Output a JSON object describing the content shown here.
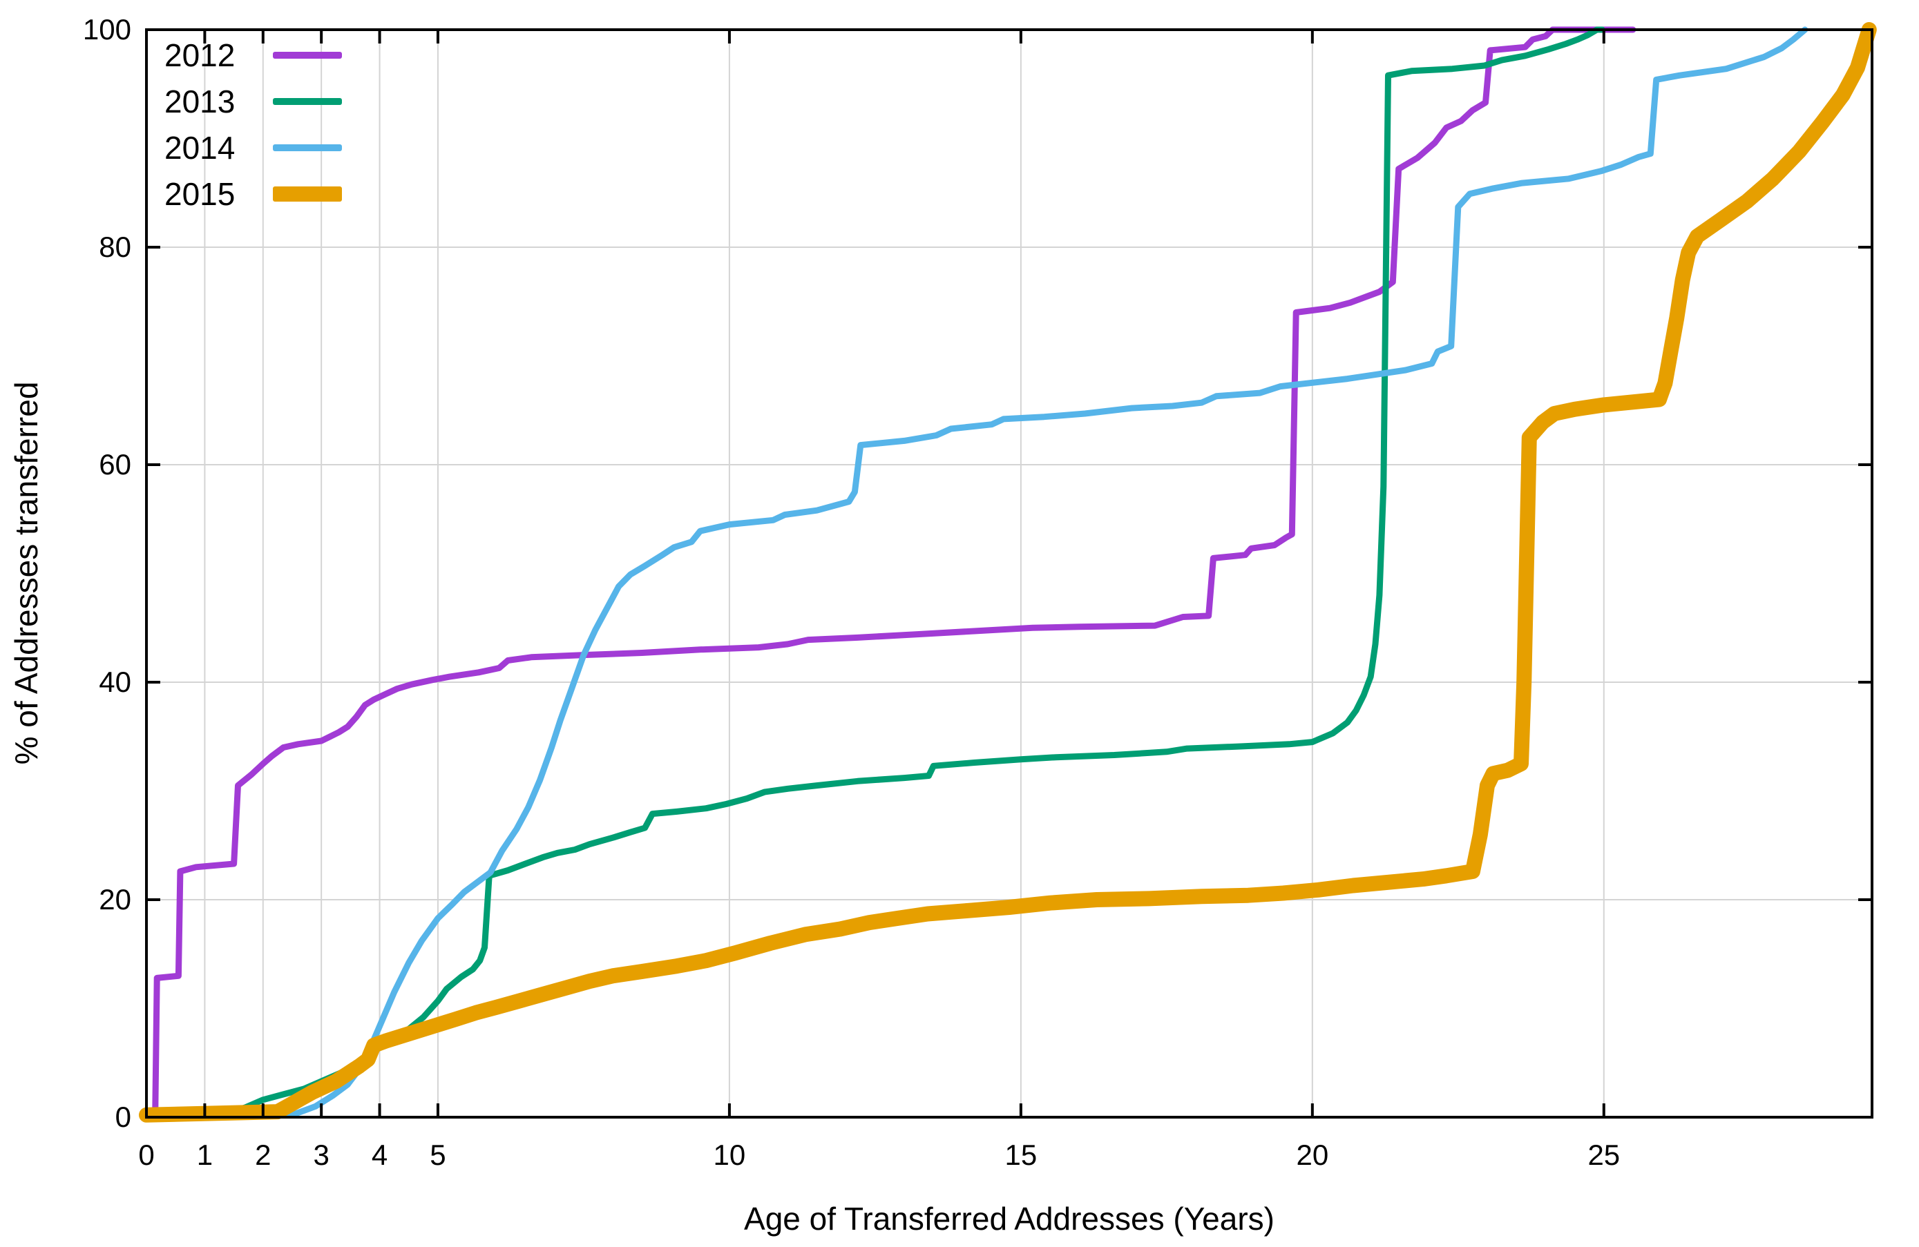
{
  "axes": {
    "x": {
      "title": "Age of Transferred Addresses (Years)",
      "range": [
        0,
        29.6
      ],
      "ticks": [
        0,
        1,
        2,
        3,
        4,
        5,
        10,
        15,
        20,
        25
      ]
    },
    "y": {
      "title": "% of Addresses transferred",
      "range": [
        0,
        100
      ],
      "ticks": [
        0,
        20,
        40,
        60,
        80,
        100
      ]
    }
  },
  "legend": [
    {
      "label": "2012",
      "color": "#a13bd5",
      "thick": false
    },
    {
      "label": "2013",
      "color": "#009e73",
      "thick": false
    },
    {
      "label": "2014",
      "color": "#56b4e9",
      "thick": false
    },
    {
      "label": "2015",
      "color": "#e69f00",
      "thick": true
    }
  ],
  "colors": {
    "grid": "#d4d4d4",
    "axis": "#000000",
    "background": "#ffffff"
  },
  "chart_data": {
    "type": "line",
    "title": "",
    "xlabel": "Age of Transferred Addresses (Years)",
    "ylabel": "% of Addresses transferred",
    "xlim": [
      0,
      29.6
    ],
    "ylim": [
      0,
      100
    ],
    "grid": true,
    "legend_position": "top-left-inside",
    "series": [
      {
        "name": "2012",
        "color": "#a13bd5",
        "line_width": 9,
        "points": [
          [
            0,
            0
          ],
          [
            0.15,
            0.2
          ],
          [
            0.18,
            12.8
          ],
          [
            0.55,
            13
          ],
          [
            0.58,
            22.6
          ],
          [
            0.85,
            23
          ],
          [
            1.5,
            23.3
          ],
          [
            1.57,
            30.5
          ],
          [
            1.8,
            31.5
          ],
          [
            2.0,
            32.5
          ],
          [
            2.15,
            33.2
          ],
          [
            2.35,
            34
          ],
          [
            2.6,
            34.3
          ],
          [
            3.0,
            34.6
          ],
          [
            3.15,
            35
          ],
          [
            3.3,
            35.4
          ],
          [
            3.45,
            35.9
          ],
          [
            3.6,
            36.8
          ],
          [
            3.75,
            37.9
          ],
          [
            3.9,
            38.4
          ],
          [
            4.1,
            38.9
          ],
          [
            4.3,
            39.4
          ],
          [
            4.55,
            39.8
          ],
          [
            4.9,
            40.2
          ],
          [
            5.2,
            40.5
          ],
          [
            5.7,
            40.9
          ],
          [
            6.05,
            41.3
          ],
          [
            6.2,
            42
          ],
          [
            6.6,
            42.3
          ],
          [
            7.5,
            42.5
          ],
          [
            8.5,
            42.7
          ],
          [
            9.5,
            43
          ],
          [
            10.5,
            43.2
          ],
          [
            11.0,
            43.5
          ],
          [
            11.35,
            43.9
          ],
          [
            12.2,
            44.1
          ],
          [
            13.2,
            44.4
          ],
          [
            14.2,
            44.7
          ],
          [
            15.2,
            45
          ],
          [
            16.0,
            45.1
          ],
          [
            17.3,
            45.2
          ],
          [
            17.78,
            46
          ],
          [
            18.22,
            46.1
          ],
          [
            18.3,
            51.4
          ],
          [
            18.85,
            51.7
          ],
          [
            18.95,
            52.3
          ],
          [
            19.35,
            52.6
          ],
          [
            19.55,
            53.3
          ],
          [
            19.65,
            53.6
          ],
          [
            19.72,
            74
          ],
          [
            20.3,
            74.4
          ],
          [
            20.65,
            74.9
          ],
          [
            20.95,
            75.5
          ],
          [
            21.15,
            75.9
          ],
          [
            21.38,
            76.8
          ],
          [
            21.48,
            87.2
          ],
          [
            21.8,
            88.2
          ],
          [
            22.1,
            89.6
          ],
          [
            22.3,
            91
          ],
          [
            22.55,
            91.6
          ],
          [
            22.75,
            92.6
          ],
          [
            22.97,
            93.3
          ],
          [
            23.05,
            98.1
          ],
          [
            23.65,
            98.4
          ],
          [
            23.78,
            99.1
          ],
          [
            24.0,
            99.4
          ],
          [
            24.12,
            100
          ],
          [
            25.5,
            100
          ]
        ]
      },
      {
        "name": "2013",
        "color": "#009e73",
        "line_width": 9,
        "points": [
          [
            0,
            0
          ],
          [
            1.3,
            0.2
          ],
          [
            1.7,
            0.9
          ],
          [
            2.0,
            1.6
          ],
          [
            2.35,
            2.1
          ],
          [
            2.7,
            2.6
          ],
          [
            3.0,
            3.3
          ],
          [
            3.3,
            4.0
          ],
          [
            3.55,
            4.6
          ],
          [
            3.8,
            5.6
          ],
          [
            4.0,
            6.4
          ],
          [
            4.2,
            7.4
          ],
          [
            4.5,
            8.1
          ],
          [
            4.75,
            9.2
          ],
          [
            5.0,
            10.7
          ],
          [
            5.15,
            11.8
          ],
          [
            5.4,
            12.9
          ],
          [
            5.6,
            13.6
          ],
          [
            5.72,
            14.4
          ],
          [
            5.8,
            15.6
          ],
          [
            5.88,
            22.2
          ],
          [
            6.2,
            22.7
          ],
          [
            6.5,
            23.3
          ],
          [
            6.8,
            23.9
          ],
          [
            7.05,
            24.3
          ],
          [
            7.35,
            24.6
          ],
          [
            7.6,
            25.1
          ],
          [
            8.0,
            25.7
          ],
          [
            8.3,
            26.2
          ],
          [
            8.55,
            26.6
          ],
          [
            8.68,
            27.9
          ],
          [
            9.1,
            28.1
          ],
          [
            9.6,
            28.4
          ],
          [
            9.95,
            28.8
          ],
          [
            10.3,
            29.3
          ],
          [
            10.6,
            29.9
          ],
          [
            11.0,
            30.2
          ],
          [
            11.5,
            30.5
          ],
          [
            12.2,
            30.9
          ],
          [
            13.0,
            31.2
          ],
          [
            13.42,
            31.4
          ],
          [
            13.5,
            32.3
          ],
          [
            14.2,
            32.6
          ],
          [
            15.0,
            32.9
          ],
          [
            15.6,
            33.1
          ],
          [
            16.6,
            33.3
          ],
          [
            17.5,
            33.6
          ],
          [
            17.85,
            33.9
          ],
          [
            18.8,
            34.1
          ],
          [
            19.6,
            34.3
          ],
          [
            20.0,
            34.5
          ],
          [
            20.35,
            35.3
          ],
          [
            20.6,
            36.3
          ],
          [
            20.75,
            37.4
          ],
          [
            20.88,
            38.8
          ],
          [
            21.0,
            40.5
          ],
          [
            21.08,
            43.5
          ],
          [
            21.15,
            48
          ],
          [
            21.22,
            58
          ],
          [
            21.3,
            95.8
          ],
          [
            21.7,
            96.2
          ],
          [
            22.4,
            96.4
          ],
          [
            22.95,
            96.7
          ],
          [
            23.25,
            97.2
          ],
          [
            23.65,
            97.6
          ],
          [
            24.05,
            98.2
          ],
          [
            24.35,
            98.7
          ],
          [
            24.55,
            99.1
          ],
          [
            24.72,
            99.5
          ],
          [
            24.88,
            100
          ],
          [
            24.97,
            100
          ]
        ]
      },
      {
        "name": "2014",
        "color": "#56b4e9",
        "line_width": 9,
        "points": [
          [
            0,
            0
          ],
          [
            2.5,
            0.2
          ],
          [
            2.9,
            1.0
          ],
          [
            3.2,
            2.0
          ],
          [
            3.45,
            3.0
          ],
          [
            3.65,
            4.4
          ],
          [
            3.85,
            6.5
          ],
          [
            4.05,
            9.0
          ],
          [
            4.25,
            11.5
          ],
          [
            4.5,
            14.2
          ],
          [
            4.72,
            16.2
          ],
          [
            5.0,
            18.3
          ],
          [
            5.25,
            19.6
          ],
          [
            5.45,
            20.7
          ],
          [
            5.7,
            21.7
          ],
          [
            5.9,
            22.5
          ],
          [
            6.1,
            24.5
          ],
          [
            6.35,
            26.5
          ],
          [
            6.55,
            28.5
          ],
          [
            6.75,
            31
          ],
          [
            6.95,
            34
          ],
          [
            7.1,
            36.5
          ],
          [
            7.3,
            39.5
          ],
          [
            7.5,
            42.5
          ],
          [
            7.7,
            44.8
          ],
          [
            7.9,
            46.8
          ],
          [
            8.1,
            48.8
          ],
          [
            8.3,
            49.9
          ],
          [
            8.55,
            50.7
          ],
          [
            8.85,
            51.7
          ],
          [
            9.05,
            52.4
          ],
          [
            9.35,
            52.9
          ],
          [
            9.5,
            53.9
          ],
          [
            10.0,
            54.5
          ],
          [
            10.75,
            54.9
          ],
          [
            10.95,
            55.4
          ],
          [
            11.5,
            55.8
          ],
          [
            12.05,
            56.6
          ],
          [
            12.15,
            57.5
          ],
          [
            12.25,
            61.8
          ],
          [
            13.0,
            62.2
          ],
          [
            13.55,
            62.7
          ],
          [
            13.8,
            63.3
          ],
          [
            14.5,
            63.7
          ],
          [
            14.7,
            64.2
          ],
          [
            15.4,
            64.4
          ],
          [
            16.1,
            64.7
          ],
          [
            16.9,
            65.2
          ],
          [
            17.6,
            65.4
          ],
          [
            18.1,
            65.7
          ],
          [
            18.35,
            66.3
          ],
          [
            19.1,
            66.6
          ],
          [
            19.45,
            67.2
          ],
          [
            20.6,
            67.9
          ],
          [
            21.1,
            68.3
          ],
          [
            21.6,
            68.7
          ],
          [
            22.05,
            69.3
          ],
          [
            22.15,
            70.4
          ],
          [
            22.38,
            70.9
          ],
          [
            22.5,
            83.7
          ],
          [
            22.7,
            84.9
          ],
          [
            23.1,
            85.4
          ],
          [
            23.6,
            85.9
          ],
          [
            24.4,
            86.3
          ],
          [
            24.95,
            87
          ],
          [
            25.3,
            87.6
          ],
          [
            25.6,
            88.3
          ],
          [
            25.8,
            88.6
          ],
          [
            25.9,
            95.4
          ],
          [
            26.3,
            95.8
          ],
          [
            27.1,
            96.4
          ],
          [
            27.75,
            97.5
          ],
          [
            28.05,
            98.3
          ],
          [
            28.25,
            99.1
          ],
          [
            28.45,
            100
          ]
        ]
      },
      {
        "name": "2015",
        "color": "#e69f00",
        "line_width": 22,
        "points": [
          [
            0,
            0.2
          ],
          [
            2.25,
            0.5
          ],
          [
            2.45,
            1.1
          ],
          [
            2.65,
            1.7
          ],
          [
            2.85,
            2.3
          ],
          [
            3.05,
            2.8
          ],
          [
            3.25,
            3.3
          ],
          [
            3.45,
            4.0
          ],
          [
            3.65,
            4.7
          ],
          [
            3.8,
            5.3
          ],
          [
            3.9,
            6.6
          ],
          [
            4.1,
            7.0
          ],
          [
            4.4,
            7.5
          ],
          [
            4.7,
            8.0
          ],
          [
            5.0,
            8.5
          ],
          [
            5.3,
            9.0
          ],
          [
            5.65,
            9.6
          ],
          [
            6.0,
            10.1
          ],
          [
            6.4,
            10.7
          ],
          [
            6.8,
            11.3
          ],
          [
            7.2,
            11.9
          ],
          [
            7.6,
            12.5
          ],
          [
            8.0,
            13.0
          ],
          [
            8.5,
            13.4
          ],
          [
            9.1,
            13.9
          ],
          [
            9.6,
            14.4
          ],
          [
            10.1,
            15.1
          ],
          [
            10.7,
            16.0
          ],
          [
            11.3,
            16.8
          ],
          [
            11.9,
            17.3
          ],
          [
            12.4,
            17.9
          ],
          [
            12.9,
            18.3
          ],
          [
            13.4,
            18.7
          ],
          [
            14.1,
            19.0
          ],
          [
            14.8,
            19.3
          ],
          [
            15.5,
            19.7
          ],
          [
            16.3,
            20.0
          ],
          [
            17.2,
            20.1
          ],
          [
            18.1,
            20.3
          ],
          [
            18.9,
            20.4
          ],
          [
            19.5,
            20.6
          ],
          [
            20.1,
            20.9
          ],
          [
            20.7,
            21.3
          ],
          [
            21.3,
            21.6
          ],
          [
            21.9,
            21.9
          ],
          [
            22.3,
            22.2
          ],
          [
            22.75,
            22.6
          ],
          [
            22.88,
            26
          ],
          [
            23.0,
            30.5
          ],
          [
            23.1,
            31.6
          ],
          [
            23.35,
            31.9
          ],
          [
            23.58,
            32.5
          ],
          [
            23.63,
            40
          ],
          [
            23.72,
            62.5
          ],
          [
            23.95,
            63.9
          ],
          [
            24.15,
            64.7
          ],
          [
            24.5,
            65.1
          ],
          [
            25.0,
            65.5
          ],
          [
            25.95,
            66
          ],
          [
            26.05,
            67.5
          ],
          [
            26.15,
            70.5
          ],
          [
            26.25,
            73.5
          ],
          [
            26.35,
            77
          ],
          [
            26.45,
            79.5
          ],
          [
            26.6,
            81
          ],
          [
            27.0,
            82.5
          ],
          [
            27.45,
            84.2
          ],
          [
            27.9,
            86.3
          ],
          [
            28.35,
            88.8
          ],
          [
            28.75,
            91.5
          ],
          [
            29.1,
            94
          ],
          [
            29.35,
            96.5
          ],
          [
            29.55,
            100
          ]
        ]
      }
    ]
  }
}
